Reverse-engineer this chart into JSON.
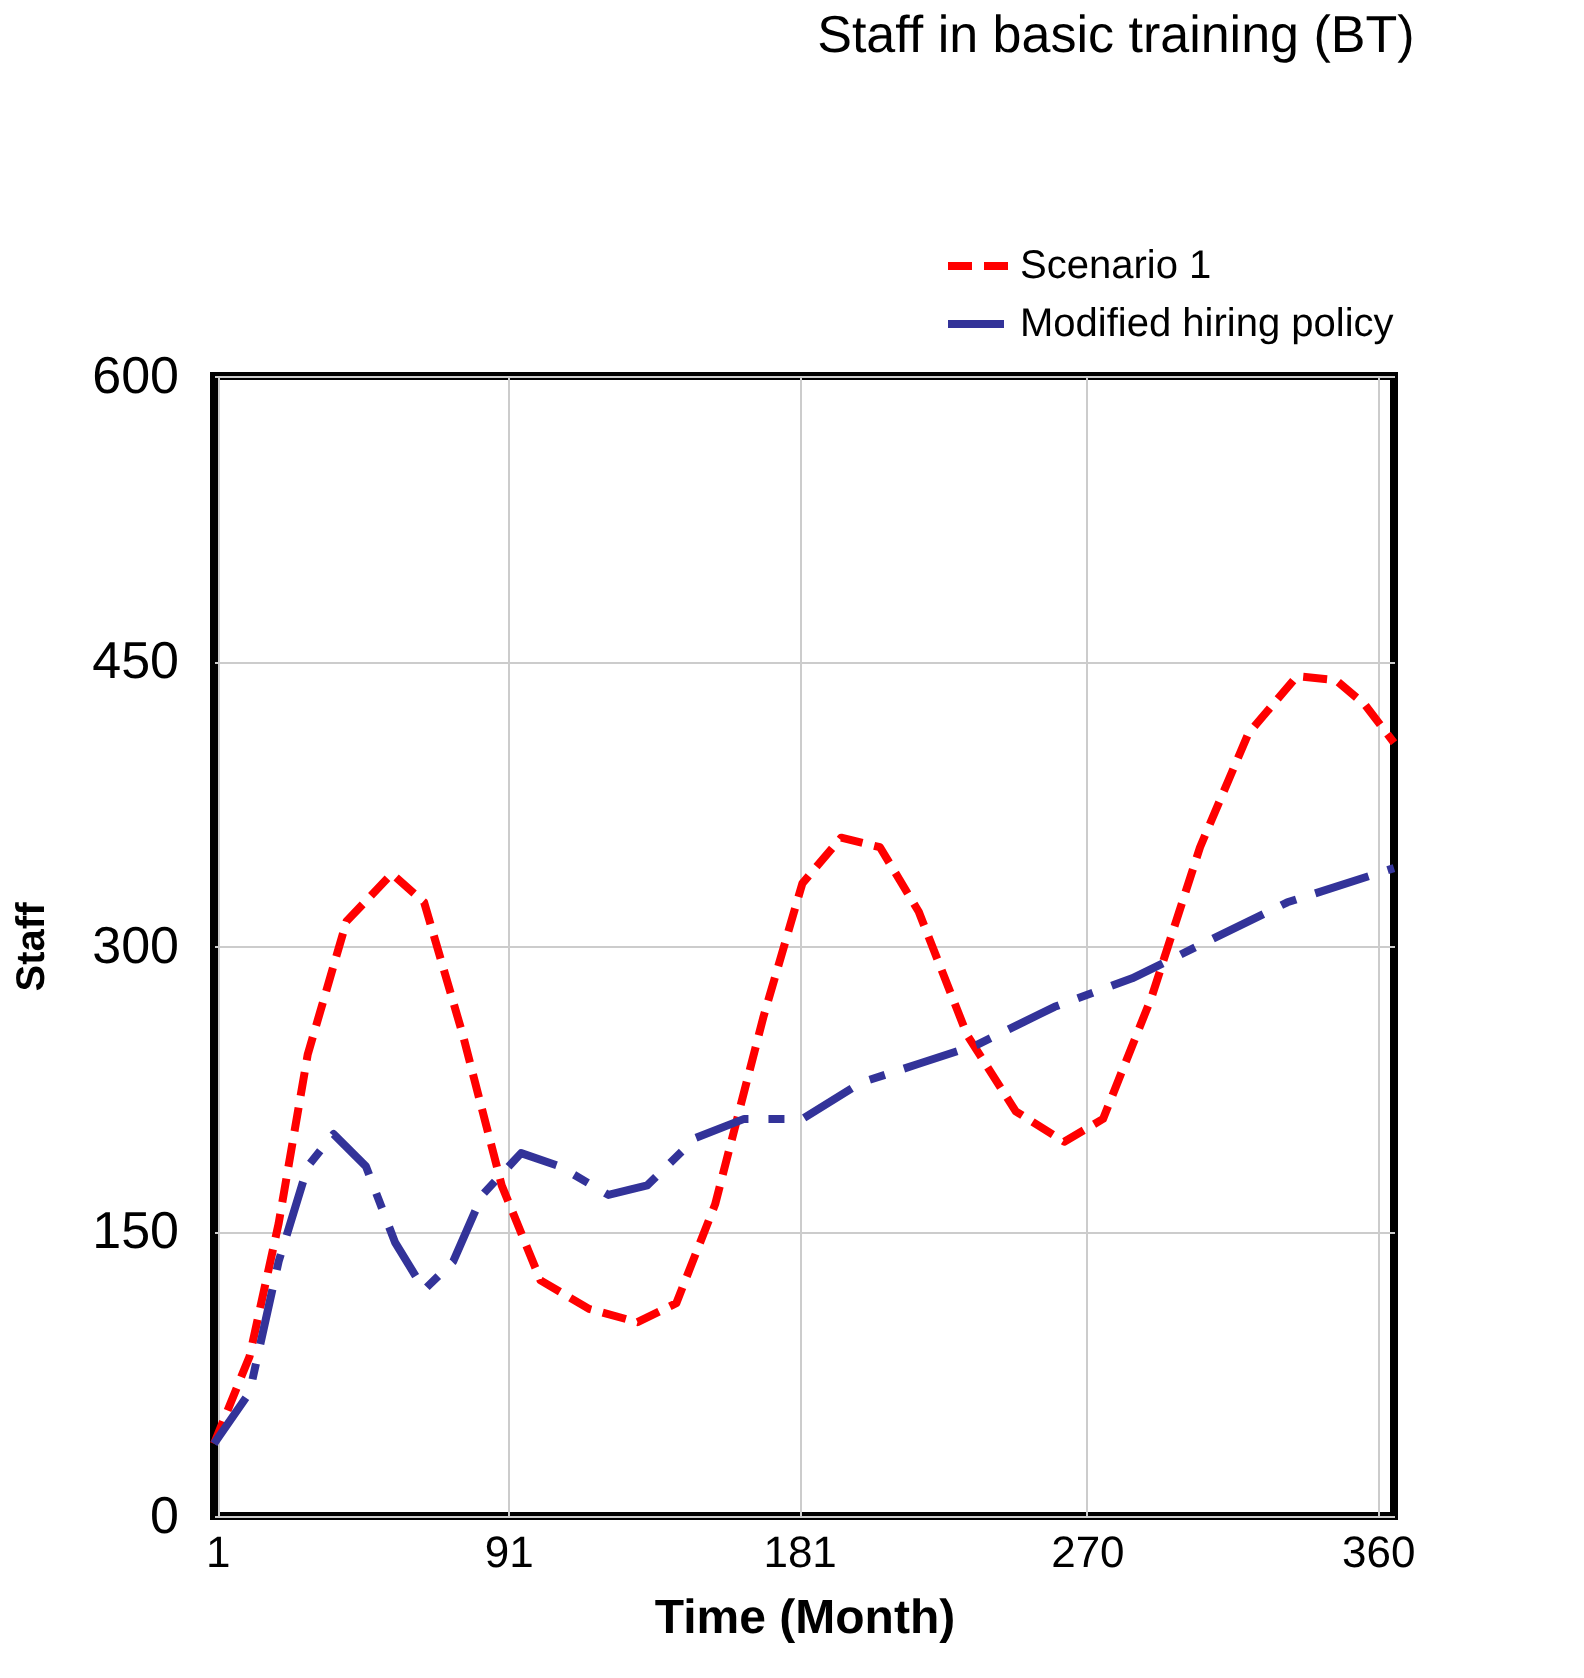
{
  "chart_data": {
    "type": "line",
    "title": "Staff in basic training (BT)",
    "xlabel": "Time (Month)",
    "ylabel": "Staff",
    "xlim": [
      0,
      365
    ],
    "xticks": [
      1,
      91,
      181,
      270,
      360
    ],
    "ylim": [
      0,
      600
    ],
    "yticks": [
      0,
      150,
      300,
      450,
      600
    ],
    "grid": true,
    "legend": "top right",
    "line_style": "dashed",
    "series": [
      {
        "name": "Scenario 1",
        "color": "#ff0000",
        "x": [
          0,
          11,
          20,
          29,
          41,
          55,
          65,
          77,
          89,
          101,
          116,
          131,
          143,
          155,
          170,
          182,
          194,
          206,
          218,
          233,
          248,
          263,
          275,
          290,
          305,
          320,
          335,
          347,
          356,
          365
        ],
        "values": [
          38,
          84,
          154,
          243,
          313,
          338,
          323,
          253,
          174,
          124,
          109,
          102,
          112,
          164,
          263,
          333,
          357,
          352,
          318,
          253,
          213,
          197,
          209,
          273,
          352,
          412,
          442,
          440,
          427,
          407
        ]
      },
      {
        "name": "Modified hiring policy",
        "color": "#333399",
        "x": [
          0,
          11,
          20,
          29,
          37,
          47,
          56,
          65,
          74,
          83,
          95,
          107,
          122,
          134,
          149,
          164,
          182,
          200,
          218,
          236,
          260,
          284,
          308,
          332,
          365
        ],
        "values": [
          38,
          65,
          134,
          184,
          201,
          184,
          144,
          119,
          134,
          169,
          191,
          184,
          169,
          174,
          199,
          209,
          209,
          228,
          238,
          248,
          268,
          283,
          303,
          323,
          341
        ]
      }
    ]
  }
}
